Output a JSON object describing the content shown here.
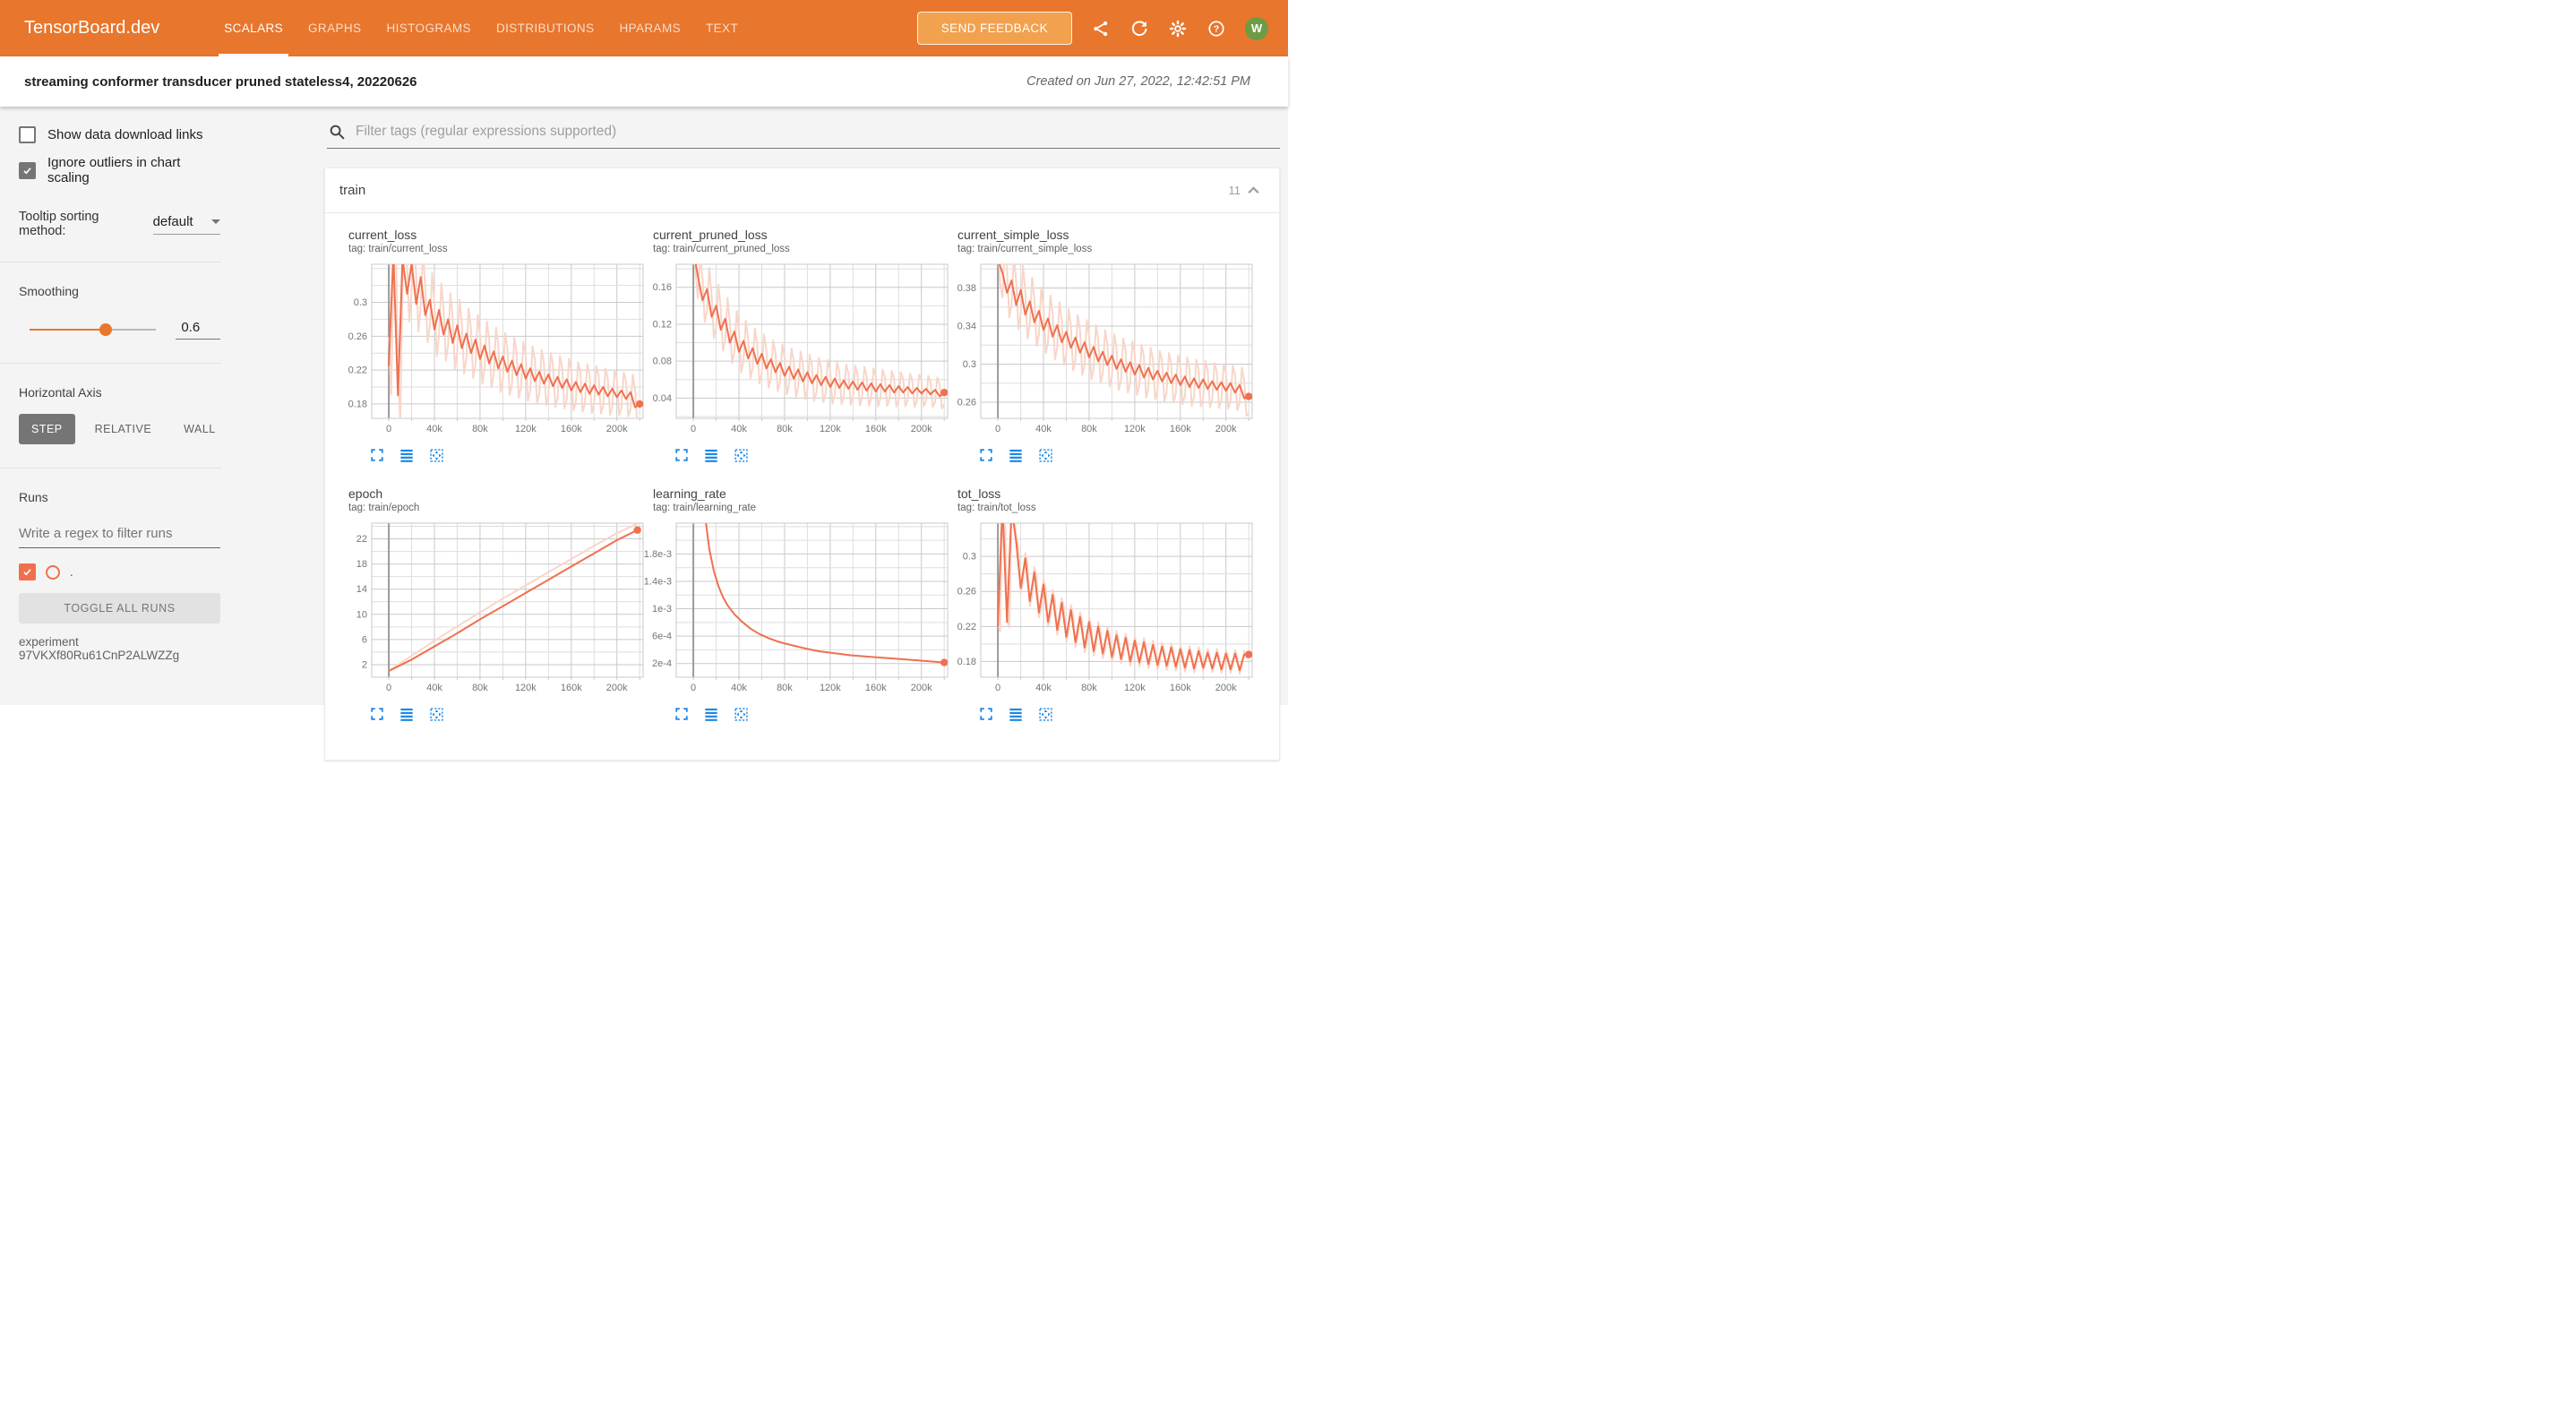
{
  "navbar": {
    "logo": "TensorBoard.dev",
    "tabs": [
      {
        "label": "SCALARS",
        "active": true
      },
      {
        "label": "GRAPHS",
        "active": false
      },
      {
        "label": "HISTOGRAMS",
        "active": false
      },
      {
        "label": "DISTRIBUTIONS",
        "active": false
      },
      {
        "label": "HPARAMS",
        "active": false
      },
      {
        "label": "TEXT",
        "active": false
      }
    ],
    "feedback_label": "SEND FEEDBACK",
    "avatar_letter": "W"
  },
  "header": {
    "title": "streaming conformer transducer pruned stateless4, 20220626",
    "created": "Created on Jun 27, 2022, 12:42:51 PM"
  },
  "sidebar": {
    "show_download": {
      "label": "Show data download links",
      "checked": false
    },
    "ignore_outliers": {
      "label": "Ignore outliers in chart scaling",
      "checked": true
    },
    "tooltip_sorting": {
      "label": "Tooltip sorting method:",
      "value": "default"
    },
    "smoothing": {
      "label": "Smoothing",
      "value": "0.6",
      "fraction": 0.6
    },
    "horizontal_axis": {
      "label": "Horizontal Axis",
      "options": [
        "STEP",
        "RELATIVE",
        "WALL"
      ],
      "selected": "STEP"
    },
    "runs": {
      "label": "Runs",
      "filter_placeholder": "Write a regex to filter runs",
      "run": {
        "name": ".",
        "checked": true
      },
      "toggle_all_label": "TOGGLE ALL RUNS",
      "experiment": "experiment 97VKXf80Ru61CnP2ALWZZg"
    }
  },
  "main": {
    "filter_placeholder": "Filter tags (regular expressions supported)",
    "section_title": "train",
    "section_count": "11"
  },
  "colors": {
    "navbar": "#e8762c",
    "feedback": "#f2a14f",
    "accent": "#e8762c",
    "avatar": "#6e9b45",
    "run": "#f0704e",
    "line": "#f0704e",
    "raw": "#f8d6c9",
    "icon_blue": "#1e88e5"
  },
  "chart_data": [
    {
      "type": "line",
      "title": "current_loss",
      "tag": "tag: train/current_loss",
      "x_range": [
        -15000,
        223000
      ],
      "x_ticks": [
        0,
        40000,
        80000,
        120000,
        160000,
        200000
      ],
      "x_tick_labels": [
        "0",
        "40k",
        "80k",
        "120k",
        "160k",
        "200k"
      ],
      "y_range": [
        0.163,
        0.345
      ],
      "y_ticks": [
        0.18,
        0.22,
        0.26,
        0.3
      ],
      "y_tick_labels": [
        "0.18",
        "0.22",
        "0.26",
        "0.3"
      ],
      "x_start": 0,
      "x_step": 4000,
      "smooth_y": [
        0.225,
        0.358,
        0.19,
        0.352,
        0.31,
        0.346,
        0.298,
        0.33,
        0.285,
        0.303,
        0.268,
        0.291,
        0.262,
        0.28,
        0.252,
        0.273,
        0.246,
        0.263,
        0.24,
        0.256,
        0.233,
        0.249,
        0.228,
        0.242,
        0.222,
        0.236,
        0.218,
        0.231,
        0.214,
        0.227,
        0.21,
        0.222,
        0.207,
        0.218,
        0.204,
        0.215,
        0.201,
        0.212,
        0.199,
        0.209,
        0.196,
        0.206,
        0.194,
        0.204,
        0.192,
        0.202,
        0.191,
        0.2,
        0.189,
        0.198,
        0.188,
        0.196,
        0.186,
        0.194,
        0.176,
        0.18
      ],
      "raw_band": [
        0.034,
        0.02
      ]
    },
    {
      "type": "line",
      "title": "current_pruned_loss",
      "tag": "tag: train/current_pruned_loss",
      "x_range": [
        -15000,
        223000
      ],
      "x_ticks": [
        0,
        40000,
        80000,
        120000,
        160000,
        200000
      ],
      "x_tick_labels": [
        "0",
        "40k",
        "80k",
        "120k",
        "160k",
        "200k"
      ],
      "y_range": [
        0.018,
        0.185
      ],
      "y_ticks": [
        0.04,
        0.08,
        0.12,
        0.16
      ],
      "y_tick_labels": [
        "0.04",
        "0.08",
        "0.12",
        "0.16"
      ],
      "x_start": 0,
      "x_step": 4000,
      "smooth_y": [
        0.2,
        0.172,
        0.146,
        0.158,
        0.128,
        0.14,
        0.114,
        0.126,
        0.1,
        0.112,
        0.09,
        0.102,
        0.083,
        0.094,
        0.077,
        0.088,
        0.072,
        0.082,
        0.068,
        0.078,
        0.064,
        0.074,
        0.061,
        0.071,
        0.058,
        0.068,
        0.056,
        0.065,
        0.054,
        0.063,
        0.052,
        0.061,
        0.051,
        0.059,
        0.05,
        0.058,
        0.049,
        0.057,
        0.048,
        0.056,
        0.047,
        0.055,
        0.047,
        0.054,
        0.046,
        0.053,
        0.046,
        0.052,
        0.045,
        0.051,
        0.045,
        0.05,
        0.044,
        0.049,
        0.042,
        0.046
      ],
      "raw_band": [
        0.024,
        0.013
      ]
    },
    {
      "type": "line",
      "title": "current_simple_loss",
      "tag": "tag: train/current_simple_loss",
      "x_range": [
        -15000,
        223000
      ],
      "x_ticks": [
        0,
        40000,
        80000,
        120000,
        160000,
        200000
      ],
      "x_tick_labels": [
        "0",
        "40k",
        "80k",
        "120k",
        "160k",
        "200k"
      ],
      "y_range": [
        0.243,
        0.405
      ],
      "y_ticks": [
        0.26,
        0.3,
        0.34,
        0.38
      ],
      "y_tick_labels": [
        "0.26",
        "0.3",
        "0.34",
        "0.38"
      ],
      "x_start": 0,
      "x_step": 4000,
      "smooth_y": [
        0.41,
        0.396,
        0.375,
        0.388,
        0.362,
        0.378,
        0.352,
        0.366,
        0.344,
        0.356,
        0.336,
        0.348,
        0.329,
        0.341,
        0.323,
        0.334,
        0.317,
        0.328,
        0.312,
        0.323,
        0.307,
        0.318,
        0.303,
        0.313,
        0.299,
        0.309,
        0.295,
        0.305,
        0.292,
        0.302,
        0.289,
        0.299,
        0.286,
        0.296,
        0.284,
        0.293,
        0.282,
        0.291,
        0.28,
        0.289,
        0.278,
        0.287,
        0.276,
        0.285,
        0.275,
        0.284,
        0.274,
        0.282,
        0.273,
        0.281,
        0.272,
        0.28,
        0.27,
        0.278,
        0.264,
        0.266
      ],
      "raw_band": [
        0.026,
        0.018
      ]
    },
    {
      "type": "line",
      "title": "epoch",
      "tag": "tag: train/epoch",
      "x_range": [
        -15000,
        223000
      ],
      "x_ticks": [
        0,
        40000,
        80000,
        120000,
        160000,
        200000
      ],
      "x_tick_labels": [
        "0",
        "40k",
        "80k",
        "120k",
        "160k",
        "200k"
      ],
      "y_range": [
        0,
        24.5
      ],
      "y_ticks": [
        2,
        6,
        10,
        14,
        18,
        22
      ],
      "y_tick_labels": [
        "2",
        "6",
        "10",
        "14",
        "18",
        "22"
      ],
      "x": [
        0,
        20000,
        40000,
        60000,
        80000,
        100000,
        120000,
        140000,
        160000,
        180000,
        200000,
        218000
      ],
      "y": [
        1.0,
        2.8,
        4.9,
        7.0,
        9.2,
        11.3,
        13.4,
        15.5,
        17.6,
        19.7,
        21.8,
        23.4
      ],
      "raw_y": [
        1.0,
        3.4,
        5.8,
        8.1,
        10.3,
        12.5,
        14.6,
        16.7,
        18.8,
        20.9,
        22.9,
        24.4
      ]
    },
    {
      "type": "line",
      "title": "learning_rate",
      "tag": "tag: train/learning_rate",
      "x_range": [
        -15000,
        223000
      ],
      "x_ticks": [
        0,
        40000,
        80000,
        120000,
        160000,
        200000
      ],
      "x_tick_labels": [
        "0",
        "40k",
        "80k",
        "120k",
        "160k",
        "200k"
      ],
      "y_range": [
        0,
        0.00225
      ],
      "y_ticks": [
        0.0002,
        0.0006,
        0.001,
        0.0014,
        0.0018
      ],
      "y_tick_labels": [
        "2e-4",
        "6e-4",
        "1e-3",
        "1.4e-3",
        "1.8e-3"
      ],
      "x": [
        8000,
        10000,
        14000,
        18000,
        22000,
        26000,
        30000,
        36000,
        42000,
        50000,
        58000,
        66000,
        76000,
        86000,
        98000,
        110000,
        124000,
        138000,
        154000,
        170000,
        186000,
        202000,
        212000,
        220000
      ],
      "y": [
        0.00265,
        0.0024,
        0.00187,
        0.00155,
        0.00133,
        0.00117,
        0.00105,
        0.00092,
        0.00082,
        0.00071,
        0.00063,
        0.00057,
        0.00051,
        0.00047,
        0.00042,
        0.00038,
        0.00035,
        0.00032,
        0.0003,
        0.00028,
        0.00026,
        0.00024,
        0.000225,
        0.000215
      ]
    },
    {
      "type": "line",
      "title": "tot_loss",
      "tag": "tag: train/tot_loss",
      "x_range": [
        -15000,
        223000
      ],
      "x_ticks": [
        0,
        40000,
        80000,
        120000,
        160000,
        200000
      ],
      "x_tick_labels": [
        "0",
        "40k",
        "80k",
        "120k",
        "160k",
        "200k"
      ],
      "y_range": [
        0.162,
        0.338
      ],
      "y_ticks": [
        0.18,
        0.22,
        0.26,
        0.3
      ],
      "y_tick_labels": [
        "0.18",
        "0.22",
        "0.26",
        "0.3"
      ],
      "x_start": 0,
      "x_step": 4000,
      "smooth_y": [
        0.22,
        0.36,
        0.225,
        0.355,
        0.317,
        0.264,
        0.298,
        0.249,
        0.282,
        0.236,
        0.268,
        0.225,
        0.256,
        0.216,
        0.247,
        0.208,
        0.239,
        0.202,
        0.231,
        0.196,
        0.225,
        0.192,
        0.22,
        0.189,
        0.215,
        0.185,
        0.21,
        0.183,
        0.207,
        0.18,
        0.204,
        0.179,
        0.202,
        0.177,
        0.199,
        0.176,
        0.197,
        0.175,
        0.196,
        0.174,
        0.194,
        0.173,
        0.193,
        0.172,
        0.192,
        0.173,
        0.19,
        0.172,
        0.19,
        0.171,
        0.189,
        0.171,
        0.189,
        0.17,
        0.188,
        0.188
      ],
      "raw_band": [
        0.006,
        0.004
      ]
    }
  ]
}
